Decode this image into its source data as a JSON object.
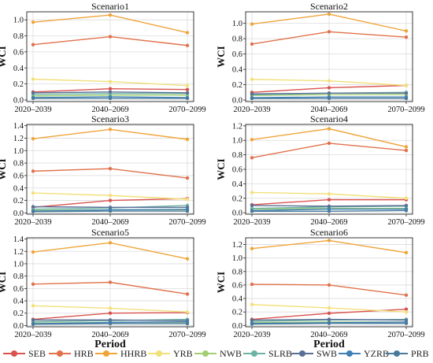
{
  "figure": {
    "xlabel_left": "Period",
    "xlabel_right": "Period"
  },
  "colors": {
    "SEB": "#d9534f",
    "HRB": "#e0714b",
    "HHRB": "#f0a43a",
    "YRB": "#f2e07a",
    "NWB": "#a3cf72",
    "SLRB": "#6db3a3",
    "SWB": "#5a6f96",
    "YZRB": "#3f7fb6",
    "PRB": "#4a7a9b"
  },
  "legend": [
    "SEB",
    "HRB",
    "HHRB",
    "YRB",
    "NWB",
    "SLRB",
    "SWB",
    "YZRB",
    "PRB"
  ],
  "chart_data": [
    {
      "type": "line",
      "title": "Scenario1",
      "ylabel": "WCI",
      "categories": [
        "2020–2039",
        "2040–2069",
        "2070–2099"
      ],
      "ylim": [
        -0.02,
        1.1
      ],
      "yticks": [
        0.0,
        0.2,
        0.4,
        0.6,
        0.8,
        1.0
      ],
      "ytick_labels": [
        "0.0",
        "0.2",
        "0.4",
        "0.6",
        "0.8",
        "1.0"
      ],
      "grid": true,
      "series": [
        {
          "name": "SEB",
          "values": [
            0.1,
            0.14,
            0.13
          ]
        },
        {
          "name": "HRB",
          "values": [
            0.69,
            0.79,
            0.68
          ]
        },
        {
          "name": "HHRB",
          "values": [
            0.97,
            1.06,
            0.84
          ]
        },
        {
          "name": "YRB",
          "values": [
            0.26,
            0.23,
            0.18
          ]
        },
        {
          "name": "NWB",
          "values": [
            0.05,
            0.06,
            0.06
          ]
        },
        {
          "name": "SLRB",
          "values": [
            0.07,
            0.08,
            0.08
          ]
        },
        {
          "name": "SWB",
          "values": [
            0.09,
            0.1,
            0.09
          ]
        },
        {
          "name": "YZRB",
          "values": [
            0.03,
            0.04,
            0.03
          ]
        },
        {
          "name": "PRB",
          "values": [
            0.02,
            0.02,
            0.02
          ]
        }
      ]
    },
    {
      "type": "line",
      "title": "Scenario2",
      "ylabel": "WCI",
      "categories": [
        "2020–2039",
        "2040–2069",
        "2070–2099"
      ],
      "ylim": [
        -0.02,
        1.15
      ],
      "yticks": [
        0.0,
        0.2,
        0.4,
        0.6,
        0.8,
        1.0
      ],
      "ytick_labels": [
        "0.0",
        "0.2",
        "0.4",
        "0.6",
        "0.8",
        "1.0"
      ],
      "grid": true,
      "series": [
        {
          "name": "SEB",
          "values": [
            0.1,
            0.16,
            0.19
          ]
        },
        {
          "name": "HRB",
          "values": [
            0.73,
            0.89,
            0.82
          ]
        },
        {
          "name": "HHRB",
          "values": [
            0.99,
            1.12,
            0.9
          ]
        },
        {
          "name": "YRB",
          "values": [
            0.27,
            0.25,
            0.19
          ]
        },
        {
          "name": "NWB",
          "values": [
            0.06,
            0.07,
            0.07
          ]
        },
        {
          "name": "SLRB",
          "values": [
            0.07,
            0.09,
            0.1
          ]
        },
        {
          "name": "SWB",
          "values": [
            0.08,
            0.09,
            0.09
          ]
        },
        {
          "name": "YZRB",
          "values": [
            0.03,
            0.04,
            0.04
          ]
        },
        {
          "name": "PRB",
          "values": [
            0.02,
            0.02,
            0.02
          ]
        }
      ]
    },
    {
      "type": "line",
      "title": "Scenario3",
      "ylabel": "WCI",
      "categories": [
        "2020–2039",
        "2040–2069",
        "2070–2099"
      ],
      "ylim": [
        -0.02,
        1.42
      ],
      "yticks": [
        0.0,
        0.2,
        0.4,
        0.6,
        0.8,
        1.0,
        1.2,
        1.4
      ],
      "ytick_labels": [
        "0.0",
        "0.2",
        "0.4",
        "0.6",
        "0.8",
        "1.0",
        "1.2",
        "1.4"
      ],
      "grid": true,
      "series": [
        {
          "name": "SEB",
          "values": [
            0.09,
            0.2,
            0.23
          ]
        },
        {
          "name": "HRB",
          "values": [
            0.67,
            0.71,
            0.56
          ]
        },
        {
          "name": "HHRB",
          "values": [
            1.19,
            1.34,
            1.18
          ]
        },
        {
          "name": "YRB",
          "values": [
            0.32,
            0.28,
            0.22
          ]
        },
        {
          "name": "NWB",
          "values": [
            0.04,
            0.05,
            0.05
          ]
        },
        {
          "name": "SLRB",
          "values": [
            0.06,
            0.08,
            0.12
          ]
        },
        {
          "name": "SWB",
          "values": [
            0.1,
            0.09,
            0.09
          ]
        },
        {
          "name": "YZRB",
          "values": [
            0.03,
            0.05,
            0.06
          ]
        },
        {
          "name": "PRB",
          "values": [
            0.02,
            0.03,
            0.03
          ]
        }
      ]
    },
    {
      "type": "line",
      "title": "Scenario4",
      "ylabel": "WCI",
      "categories": [
        "2020–2039",
        "2040–2069",
        "2070–2099"
      ],
      "ylim": [
        -0.02,
        1.22
      ],
      "yticks": [
        0.0,
        0.2,
        0.4,
        0.6,
        0.8,
        1.0,
        1.2
      ],
      "ytick_labels": [
        "0.0",
        "0.2",
        "0.4",
        "0.6",
        "0.8",
        "1.0",
        "1.2"
      ],
      "grid": true,
      "series": [
        {
          "name": "SEB",
          "values": [
            0.11,
            0.18,
            0.18
          ]
        },
        {
          "name": "HRB",
          "values": [
            0.76,
            0.96,
            0.86
          ]
        },
        {
          "name": "HHRB",
          "values": [
            1.01,
            1.16,
            0.91
          ]
        },
        {
          "name": "YRB",
          "values": [
            0.28,
            0.26,
            0.2
          ]
        },
        {
          "name": "NWB",
          "values": [
            0.05,
            0.06,
            0.06
          ]
        },
        {
          "name": "SLRB",
          "values": [
            0.06,
            0.08,
            0.09
          ]
        },
        {
          "name": "SWB",
          "values": [
            0.1,
            0.09,
            0.1
          ]
        },
        {
          "name": "YZRB",
          "values": [
            0.03,
            0.05,
            0.05
          ]
        },
        {
          "name": "PRB",
          "values": [
            0.02,
            0.02,
            0.03
          ]
        }
      ]
    },
    {
      "type": "line",
      "title": "Scenario5",
      "ylabel": "WCI",
      "categories": [
        "2020–2039",
        "2040–2069",
        "2070–2099"
      ],
      "ylim": [
        -0.02,
        1.42
      ],
      "yticks": [
        0.0,
        0.2,
        0.4,
        0.6,
        0.8,
        1.0,
        1.2,
        1.4
      ],
      "ytick_labels": [
        "0.0",
        "0.2",
        "0.4",
        "0.6",
        "0.8",
        "1.0",
        "1.2",
        "1.4"
      ],
      "grid": true,
      "series": [
        {
          "name": "SEB",
          "values": [
            0.1,
            0.2,
            0.21
          ]
        },
        {
          "name": "HRB",
          "values": [
            0.67,
            0.7,
            0.51
          ]
        },
        {
          "name": "HHRB",
          "values": [
            1.19,
            1.34,
            1.08
          ]
        },
        {
          "name": "YRB",
          "values": [
            0.32,
            0.28,
            0.22
          ]
        },
        {
          "name": "NWB",
          "values": [
            0.04,
            0.05,
            0.05
          ]
        },
        {
          "name": "SLRB",
          "values": [
            0.06,
            0.08,
            0.1
          ]
        },
        {
          "name": "SWB",
          "values": [
            0.09,
            0.09,
            0.08
          ]
        },
        {
          "name": "YZRB",
          "values": [
            0.03,
            0.05,
            0.06
          ]
        },
        {
          "name": "PRB",
          "values": [
            0.02,
            0.03,
            0.03
          ]
        }
      ]
    },
    {
      "type": "line",
      "title": "Scenario6",
      "ylabel": "WCI",
      "categories": [
        "2020–2039",
        "2040–2069",
        "2070–2099"
      ],
      "ylim": [
        -0.02,
        1.3
      ],
      "yticks": [
        0.0,
        0.2,
        0.4,
        0.6,
        0.8,
        1.0,
        1.2
      ],
      "ytick_labels": [
        "0.0",
        "0.2",
        "0.4",
        "0.6",
        "0.8",
        "1.0",
        "1.2"
      ],
      "grid": true,
      "series": [
        {
          "name": "SEB",
          "values": [
            0.09,
            0.18,
            0.24
          ]
        },
        {
          "name": "HRB",
          "values": [
            0.61,
            0.6,
            0.45
          ]
        },
        {
          "name": "HHRB",
          "values": [
            1.14,
            1.26,
            1.08
          ]
        },
        {
          "name": "YRB",
          "values": [
            0.31,
            0.26,
            0.2
          ]
        },
        {
          "name": "NWB",
          "values": [
            0.04,
            0.05,
            0.05
          ]
        },
        {
          "name": "SLRB",
          "values": [
            0.06,
            0.08,
            0.09
          ]
        },
        {
          "name": "SWB",
          "values": [
            0.08,
            0.09,
            0.08
          ]
        },
        {
          "name": "YZRB",
          "values": [
            0.03,
            0.04,
            0.05
          ]
        },
        {
          "name": "PRB",
          "values": [
            0.02,
            0.03,
            0.03
          ]
        }
      ]
    }
  ]
}
